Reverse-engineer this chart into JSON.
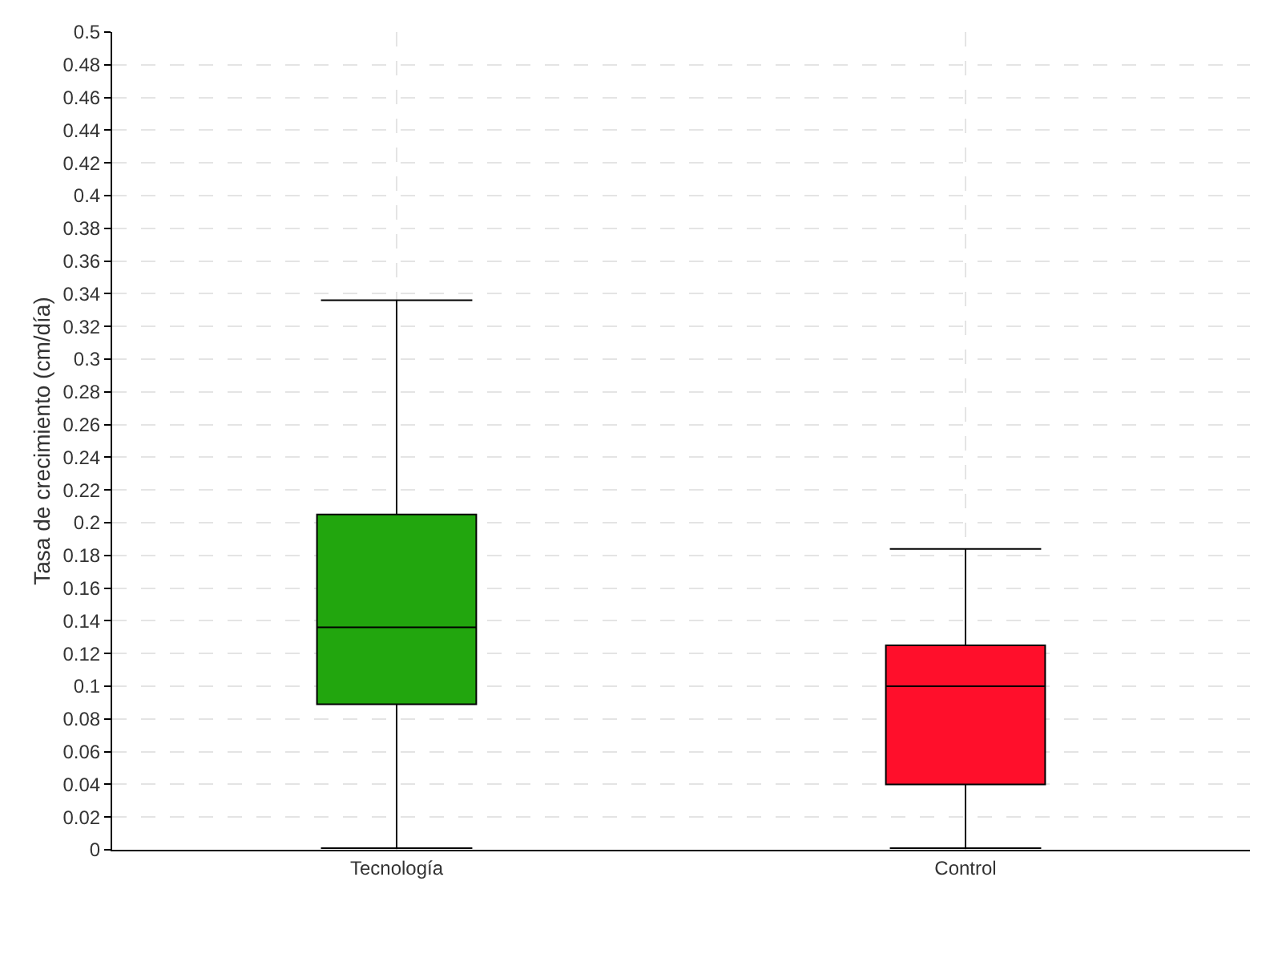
{
  "chart_data": {
    "type": "box",
    "ylabel": "Tasa de crecimiento (cm/día)",
    "categories": [
      "Tecnología",
      "Control"
    ],
    "boxes": [
      {
        "low": 0.001,
        "q1": 0.089,
        "median": 0.136,
        "q3": 0.205,
        "high": 0.336
      },
      {
        "low": 0.001,
        "q1": 0.04,
        "median": 0.1,
        "q3": 0.125,
        "high": 0.184
      }
    ],
    "colors": [
      "#22a60e",
      "#ff0f2b"
    ],
    "ylim": [
      0,
      0.5
    ],
    "yticks": [
      0,
      0.02,
      0.04,
      0.06,
      0.08,
      0.1,
      0.12,
      0.14,
      0.16,
      0.18,
      0.2,
      0.22,
      0.24,
      0.26,
      0.28,
      0.3,
      0.32,
      0.34,
      0.36,
      0.38,
      0.4,
      0.42,
      0.44,
      0.46,
      0.48,
      0.5
    ],
    "grid": true,
    "legend": false
  }
}
